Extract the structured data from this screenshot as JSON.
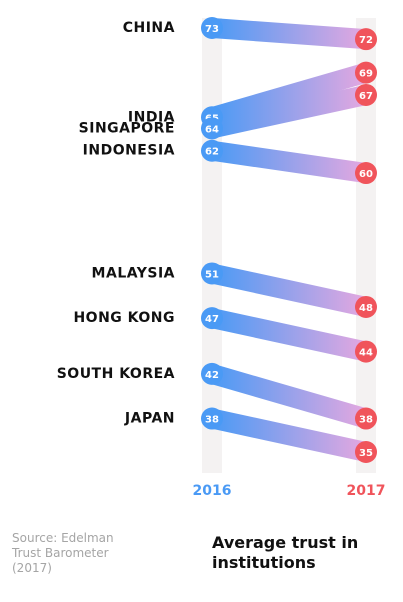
{
  "chart_data": {
    "type": "slope",
    "title": "Average trust in institutions",
    "source": "Source: Edelman Trust Barometer (2017)",
    "categories": [
      "CHINA",
      "INDIA",
      "SINGAPORE",
      "INDONESIA",
      "MALAYSIA",
      "HONG KONG",
      "SOUTH KOREA",
      "JAPAN"
    ],
    "series": [
      {
        "name": "2016",
        "color": "#4a9af5",
        "values": [
          73,
          65,
          64,
          62,
          51,
          47,
          42,
          38
        ]
      },
      {
        "name": "2017",
        "color": "#f0545b",
        "values": [
          72,
          69,
          67,
          60,
          48,
          44,
          38,
          35
        ]
      }
    ],
    "ylim": [
      35,
      73
    ]
  }
}
